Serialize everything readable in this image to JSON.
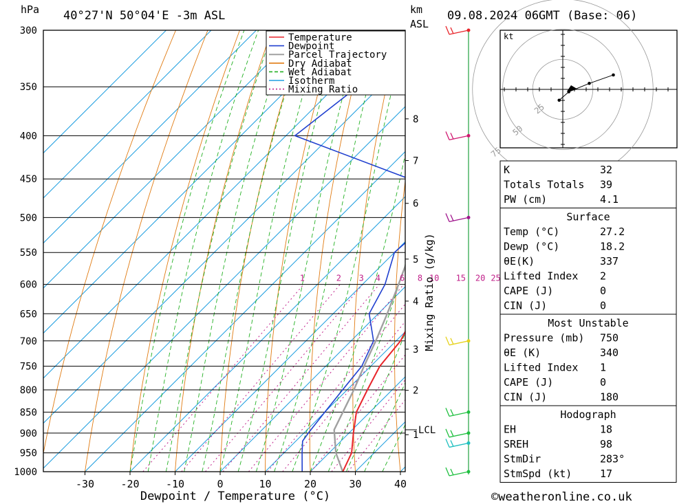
{
  "header": {
    "hpa_label": "hPa",
    "location": "40°27'N  50°04'E  -3m  ASL",
    "km_label": "km",
    "asl_label": "ASL",
    "datetime": "09.08.2024  06GMT  (Base: 06)"
  },
  "chart_data": {
    "type": "line",
    "subtype": "skew-T log-P diagram",
    "xlabel": "Dewpoint / Temperature (°C)",
    "ylabel_left": "hPa",
    "ylabel_right": "Mixing Ratio (g/kg)",
    "x_ticks": [
      -30,
      -20,
      -10,
      0,
      10,
      20,
      30,
      40
    ],
    "xlim": [
      -40,
      40
    ],
    "ylim": [
      1000,
      300
    ],
    "y_scale": "log",
    "pressure_levels": [
      300,
      350,
      400,
      450,
      500,
      550,
      600,
      650,
      700,
      750,
      800,
      850,
      900,
      950,
      1000
    ],
    "km_ticks": [
      {
        "label": "8",
        "p": 382
      },
      {
        "label": "7",
        "p": 428
      },
      {
        "label": "6",
        "p": 481
      },
      {
        "label": "5",
        "p": 560
      },
      {
        "label": "4",
        "p": 628
      },
      {
        "label": "3",
        "p": 716
      },
      {
        "label": "2",
        "p": 801
      },
      {
        "label": "1",
        "p": 904
      }
    ],
    "lcl": {
      "label": "LCL",
      "p": 892
    },
    "mixing_ratio_labels": [
      "1",
      "2",
      "3",
      "4",
      "6",
      "8",
      "10",
      "15",
      "20",
      "25"
    ],
    "mixing_ratio_values": [
      1,
      2,
      3,
      4,
      6,
      8,
      10,
      15,
      20,
      25
    ],
    "legend": {
      "placement": "top-right",
      "items": [
        {
          "name": "Temperature",
          "color": "#e8242a",
          "style": "solid"
        },
        {
          "name": "Dewpoint",
          "color": "#1f3fcf",
          "style": "solid"
        },
        {
          "name": "Parcel Trajectory",
          "color": "#a0a0a0",
          "style": "solid"
        },
        {
          "name": "Dry Adiabat",
          "color": "#e07a10",
          "style": "solid"
        },
        {
          "name": "Wet Adiabat",
          "color": "#22b022",
          "style": "dashed"
        },
        {
          "name": "Isotherm",
          "color": "#1e9ee0",
          "style": "solid"
        },
        {
          "name": "Mixing Ratio",
          "color": "#c0208a",
          "style": "dotted"
        }
      ]
    },
    "series": [
      {
        "name": "Temperature",
        "points": [
          {
            "p": 1000,
            "t": 27.2
          },
          {
            "p": 950,
            "t": 25.0
          },
          {
            "p": 900,
            "t": 21.0
          },
          {
            "p": 850,
            "t": 17.0
          },
          {
            "p": 800,
            "t": 14.5
          },
          {
            "p": 750,
            "t": 12.0
          },
          {
            "p": 700,
            "t": 11.0
          },
          {
            "p": 650,
            "t": 8.0
          },
          {
            "p": 600,
            "t": 3.0
          },
          {
            "p": 550,
            "t": -2.0
          },
          {
            "p": 500,
            "t": -7.0
          },
          {
            "p": 450,
            "t": -13.0
          },
          {
            "p": 400,
            "t": -20.0
          },
          {
            "p": 370,
            "t": -25.0
          }
        ]
      },
      {
        "name": "Dewpoint",
        "points": [
          {
            "p": 1000,
            "t": 18.2
          },
          {
            "p": 950,
            "t": 14.0
          },
          {
            "p": 920,
            "t": 11.5
          },
          {
            "p": 900,
            "t": 11.0
          },
          {
            "p": 850,
            "t": 10.0
          },
          {
            "p": 800,
            "t": 9.0
          },
          {
            "p": 750,
            "t": 8.0
          },
          {
            "p": 700,
            "t": 5.0
          },
          {
            "p": 650,
            "t": -2.0
          },
          {
            "p": 600,
            "t": -5.0
          },
          {
            "p": 550,
            "t": -10.0
          },
          {
            "p": 500,
            "t": -9.0
          },
          {
            "p": 450,
            "t": -23.0
          },
          {
            "p": 400,
            "t": -58.0
          },
          {
            "p": 350,
            "t": -55.0
          },
          {
            "p": 300,
            "t": -74.0
          }
        ]
      },
      {
        "name": "Parcel Trajectory",
        "points": [
          {
            "p": 1000,
            "t": 27.2
          },
          {
            "p": 950,
            "t": 21.5
          },
          {
            "p": 892,
            "t": 16.0
          },
          {
            "p": 850,
            "t": 14.0
          },
          {
            "p": 800,
            "t": 11.5
          },
          {
            "p": 750,
            "t": 8.5
          },
          {
            "p": 700,
            "t": 5.5
          },
          {
            "p": 650,
            "t": 2.0
          },
          {
            "p": 600,
            "t": -2.0
          },
          {
            "p": 550,
            "t": -6.5
          },
          {
            "p": 500,
            "t": -11.5
          },
          {
            "p": 450,
            "t": -17.5
          },
          {
            "p": 400,
            "t": -25.0
          },
          {
            "p": 350,
            "t": -34.0
          },
          {
            "p": 320,
            "t": -40.0
          }
        ]
      }
    ],
    "wind_barbs": [
      {
        "p": 300,
        "color": "#e8242a"
      },
      {
        "p": 400,
        "color": "#d01870"
      },
      {
        "p": 500,
        "color": "#a0148c"
      },
      {
        "p": 700,
        "color": "#e6d21e"
      },
      {
        "p": 850,
        "color": "#20c040"
      },
      {
        "p": 900,
        "color": "#20c040"
      },
      {
        "p": 925,
        "color": "#20c0c0"
      },
      {
        "p": 1000,
        "color": "#20c040"
      }
    ],
    "hodograph": {
      "unit_label": "kt",
      "ring_labels": [
        "25",
        "50",
        "75"
      ],
      "points": [
        [
          -3,
          -9
        ],
        [
          5,
          -2
        ],
        [
          22,
          5
        ],
        [
          42,
          12
        ]
      ]
    }
  },
  "stats": {
    "indices": [
      {
        "label": "K",
        "value": "32"
      },
      {
        "label": "Totals Totals",
        "value": "39"
      },
      {
        "label": "PW (cm)",
        "value": "4.1"
      }
    ],
    "surface": {
      "title": "Surface",
      "rows": [
        {
          "label": "Temp (°C)",
          "value": "27.2"
        },
        {
          "label": "Dewp (°C)",
          "value": "18.2"
        },
        {
          "label": "θE(K)",
          "value": "337"
        },
        {
          "label": "Lifted Index",
          "value": "2"
        },
        {
          "label": "CAPE (J)",
          "value": "0"
        },
        {
          "label": "CIN (J)",
          "value": "0"
        }
      ]
    },
    "most_unstable": {
      "title": "Most Unstable",
      "rows": [
        {
          "label": "Pressure (mb)",
          "value": "750"
        },
        {
          "label": "θE (K)",
          "value": "340"
        },
        {
          "label": "Lifted Index",
          "value": "1"
        },
        {
          "label": "CAPE (J)",
          "value": "0"
        },
        {
          "label": "CIN (J)",
          "value": "180"
        }
      ]
    },
    "hodograph": {
      "title": "Hodograph",
      "rows": [
        {
          "label": "EH",
          "value": "18"
        },
        {
          "label": "SREH",
          "value": "98"
        },
        {
          "label": "StmDir",
          "value": "283°"
        },
        {
          "label": "StmSpd (kt)",
          "value": "17"
        }
      ]
    }
  },
  "footer": {
    "copyright": "©weatheronline.co.uk"
  },
  "colors": {
    "temperature": "#e8242a",
    "dewpoint": "#1f3fcf",
    "parcel": "#a0a0a0",
    "dry_adiabat": "#e07a10",
    "wet_adiabat": "#22b022",
    "isotherm": "#1e9ee0",
    "mixing_ratio": "#c0208a"
  }
}
